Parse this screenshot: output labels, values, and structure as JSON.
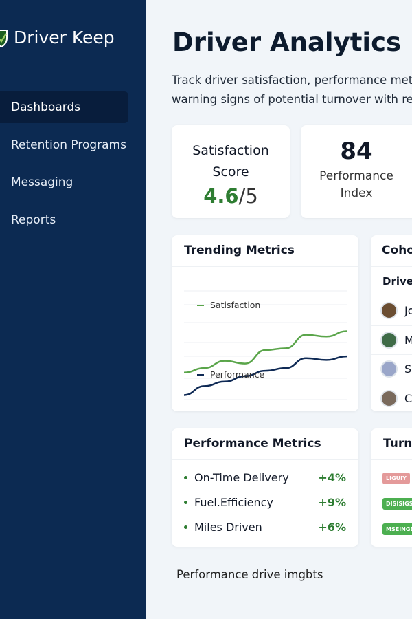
{
  "brand": {
    "name": "Driver Keep",
    "icon": "shield-check-icon"
  },
  "sidebar": {
    "items": [
      {
        "label": "Dashboards",
        "active": true
      },
      {
        "label": "Retention Programs"
      },
      {
        "label": "Messaging"
      },
      {
        "label": "Reports"
      }
    ]
  },
  "header": {
    "title": "Driver Analytics",
    "desc_line1": "Track driver satisfaction, performance met",
    "desc_line2": "warning signs of potential turnover with re"
  },
  "stats": {
    "satisfaction": {
      "label1": "Satisfaction",
      "label2": "Score",
      "value": "4.6",
      "suffix": "/5"
    },
    "performance": {
      "value": "84",
      "label1": "Performance",
      "label2": "Index"
    }
  },
  "trending": {
    "title": "Trending Metrics"
  },
  "chart_data": {
    "type": "line",
    "series": [
      {
        "name": "Satisfaction",
        "color": "#5aa54a",
        "values": [
          30,
          35,
          43,
          40,
          55,
          57,
          72,
          70,
          76
        ]
      },
      {
        "name": "Performance",
        "color": "#0f2a55",
        "values": [
          5,
          15,
          20,
          26,
          32,
          35,
          46,
          44,
          48
        ]
      }
    ]
  },
  "cohort": {
    "title": "Coho",
    "column": "Driver",
    "rows": [
      {
        "name": "Jo"
      },
      {
        "name": "M"
      },
      {
        "name": "Si"
      },
      {
        "name": "Ca"
      }
    ]
  },
  "perf": {
    "title": "Performance Metrics",
    "items": [
      {
        "label": "On-Time Delivery",
        "value": "+4%"
      },
      {
        "label": "Fuel.Efficiency",
        "value": "+9%"
      },
      {
        "label": "Miles Driven",
        "value": "+6%"
      }
    ]
  },
  "turnover": {
    "title": "Turn",
    "badges": [
      {
        "label": "LIGUIY",
        "color": "#e49a9a"
      },
      {
        "label": "DISISIGS",
        "color": "#4caf50"
      },
      {
        "label": "MSEINGE",
        "color": "#4caf50"
      }
    ]
  },
  "footer": {
    "text": "Performance drive imgbts"
  }
}
